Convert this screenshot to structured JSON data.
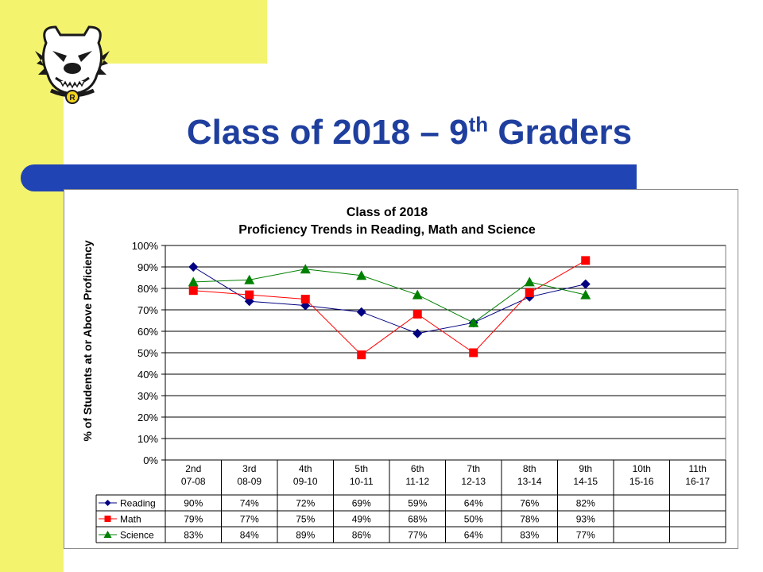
{
  "slide": {
    "title": "Class of 2018 – 9",
    "title_sup": "th",
    "title_tail": " Graders"
  },
  "colors": {
    "accent_yellow": "#f3f36e",
    "title_blue": "#1f3f9e",
    "bar_blue": "#2144b4",
    "reading": "#000080",
    "math": "#ff0000",
    "science": "#008000"
  },
  "logo": {
    "icon": "bulldog-mascot-icon",
    "letter": "R"
  },
  "chart_data": {
    "type": "line",
    "title": "Class of 2018",
    "subtitle": "Proficiency Trends in Reading, Math and Science",
    "xlabel": "",
    "ylabel": "% of Students at or Above Proficiency",
    "ylim": [
      0,
      100
    ],
    "yticks": [
      "100%",
      "90%",
      "80%",
      "70%",
      "60%",
      "50%",
      "40%",
      "30%",
      "20%",
      "10%",
      "0%"
    ],
    "grid": true,
    "legend": "data-table",
    "categories": [
      {
        "grade": "2nd",
        "year": "07-08"
      },
      {
        "grade": "3rd",
        "year": "08-09"
      },
      {
        "grade": "4th",
        "year": "09-10"
      },
      {
        "grade": "5th",
        "year": "10-11"
      },
      {
        "grade": "6th",
        "year": "11-12"
      },
      {
        "grade": "7th",
        "year": "12-13"
      },
      {
        "grade": "8th",
        "year": "13-14"
      },
      {
        "grade": "9th",
        "year": "14-15"
      },
      {
        "grade": "10th",
        "year": "15-16"
      },
      {
        "grade": "11th",
        "year": "16-17"
      }
    ],
    "series": [
      {
        "name": "Reading",
        "marker": "diamond",
        "color": "#000080",
        "values": [
          90,
          74,
          72,
          69,
          59,
          64,
          76,
          82,
          null,
          null
        ],
        "labels": [
          "90%",
          "74%",
          "72%",
          "69%",
          "59%",
          "64%",
          "76%",
          "82%",
          "",
          ""
        ]
      },
      {
        "name": "Math",
        "marker": "square",
        "color": "#ff0000",
        "values": [
          79,
          77,
          75,
          49,
          68,
          50,
          78,
          93,
          null,
          null
        ],
        "labels": [
          "79%",
          "77%",
          "75%",
          "49%",
          "68%",
          "50%",
          "78%",
          "93%",
          "",
          ""
        ]
      },
      {
        "name": "Science",
        "marker": "triangle",
        "color": "#008000",
        "values": [
          83,
          84,
          89,
          86,
          77,
          64,
          83,
          77,
          null,
          null
        ],
        "labels": [
          "83%",
          "84%",
          "89%",
          "86%",
          "77%",
          "64%",
          "83%",
          "77%",
          "",
          ""
        ]
      }
    ]
  }
}
